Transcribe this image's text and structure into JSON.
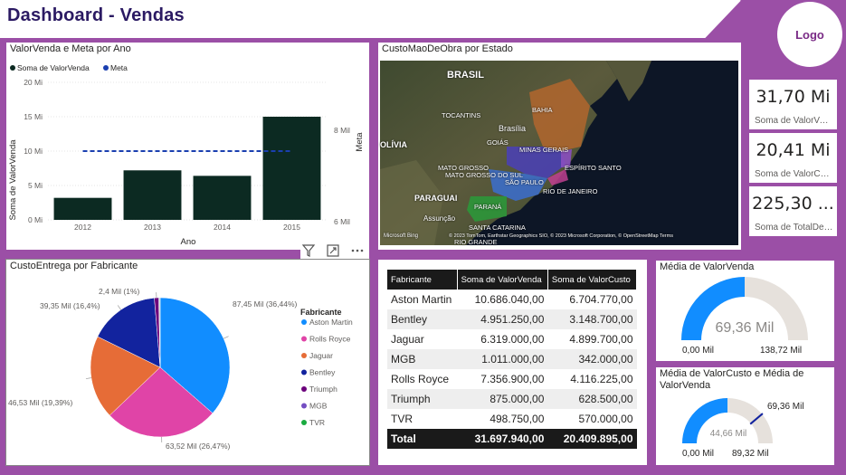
{
  "header": {
    "title": "Dashboard - Vendas",
    "logo": "Logo"
  },
  "bar_panel": {
    "title": "ValorVenda e Meta por Ano",
    "legend": [
      {
        "label": "Soma de ValorVenda",
        "color": "#0c2a22"
      },
      {
        "label": "Meta",
        "color": "#1a3fb0"
      }
    ],
    "ylabel": "Soma de ValorVenda",
    "y2label": "Meta",
    "xlabel": "Ano",
    "yticks": [
      "0 Mi",
      "5 Mi",
      "10 Mi",
      "15 Mi",
      "20 Mi"
    ],
    "y2ticks": [
      "6 Mil",
      "8 Mil"
    ]
  },
  "map_panel": {
    "title": "CustoMaoDeObra por Estado",
    "labels": {
      "brasil": "BRASIL",
      "brasilia": "Brasília",
      "bolivia": "OLÍVIA",
      "paraguai": "PARAGUAI",
      "assuncao": "Assunção",
      "minas": "MINAS GERAIS",
      "saopaulo": "SÃO PAULO",
      "rio": "RIO DE JANEIRO",
      "parana": "PARANÁ",
      "sc": "SANTA CATARINA",
      "mt": "MATO GROSSO",
      "ms": "MATO GROSSO DO SUL",
      "goias": "GOIÁS",
      "es": "ESPÍRITO SANTO",
      "bahia": "BAHIA",
      "tocantins": "TOCANTINS",
      "rgs": "RIO GRANDE"
    },
    "bing": "Microsoft Bing",
    "attribution": "© 2023 TomTom, Earthstar Geographics SIO, © 2023 Microsoft Corporation, © OpenStreetMap  Terms"
  },
  "kpis": [
    {
      "value": "31,70 Mi",
      "label": "Soma de ValorVenda"
    },
    {
      "value": "20,41 Mi",
      "label": "Soma de ValorCusto"
    },
    {
      "value": "225,30 ...",
      "label": "Soma de TotalDespesa"
    }
  ],
  "pie_panel": {
    "title": "CustoEntrega por Fabricante",
    "legend_title": "Fabricante"
  },
  "table": {
    "headers": [
      "Fabricante",
      "Soma de ValorVenda",
      "Soma de ValorCusto"
    ],
    "rows": [
      [
        "Aston Martin",
        "10.686.040,00",
        "6.704.770,00"
      ],
      [
        "Bentley",
        "4.951.250,00",
        "3.148.700,00"
      ],
      [
        "Jaguar",
        "6.319.000,00",
        "4.899.700,00"
      ],
      [
        "MGB",
        "1.011.000,00",
        "342.000,00"
      ],
      [
        "Rolls Royce",
        "7.356.900,00",
        "4.116.225,00"
      ],
      [
        "Triumph",
        "875.000,00",
        "628.500,00"
      ],
      [
        "TVR",
        "498.750,00",
        "570.000,00"
      ]
    ],
    "total": [
      "Total",
      "31.697.940,00",
      "20.409.895,00"
    ]
  },
  "gauge1": {
    "title": "Média de ValorVenda",
    "value_label": "69,36 Mil",
    "min_label": "0,00 Mil",
    "max_label": "138,72 Mil",
    "value": 69.36,
    "min": 0,
    "max": 138.72
  },
  "gauge2": {
    "title": "Média de ValorCusto e Média de ValorVenda",
    "value_label": "44,66 Mil",
    "min_label": "0,00 Mil",
    "max_label": "89,32 Mil",
    "target_label": "69,36 Mil",
    "value": 44.66,
    "min": 0,
    "max": 89.32,
    "target": 69.36
  },
  "chart_data": [
    {
      "type": "bar",
      "title": "ValorVenda e Meta por Ano",
      "categories": [
        "2012",
        "2013",
        "2014",
        "2015"
      ],
      "series": [
        {
          "name": "Soma de ValorVenda",
          "values": [
            3.2,
            7.2,
            6.4,
            15.0
          ]
        },
        {
          "name": "Meta",
          "values": [
            10,
            10,
            10,
            10
          ]
        }
      ],
      "xlabel": "Ano",
      "ylabel": "Soma de ValorVenda",
      "ylim": [
        0,
        20
      ]
    },
    {
      "type": "pie",
      "title": "CustoEntrega por Fabricante",
      "slices": [
        {
          "label": "Aston Martin",
          "value": 87.45,
          "display": "87,45 Mil (36,44%)",
          "color": "#118dff"
        },
        {
          "label": "Rolls Royce",
          "value": 63.52,
          "display": "63,52 Mil (26,47%)",
          "color": "#e044a7"
        },
        {
          "label": "Jaguar",
          "value": 46.53,
          "display": "46,53 Mil (19,39%)",
          "color": "#e66c37"
        },
        {
          "label": "Bentley",
          "value": 39.35,
          "display": "39,35 Mil (16,4%)",
          "color": "#12239e"
        },
        {
          "label": "Triumph",
          "value": 2.4,
          "display": "2,4 Mil (1%)",
          "color": "#6b007b"
        },
        {
          "label": "MGB",
          "value": 0.5,
          "display": "",
          "color": "#744ec2"
        },
        {
          "label": "TVR",
          "value": 0.3,
          "display": "",
          "color": "#1aab40"
        }
      ]
    }
  ]
}
